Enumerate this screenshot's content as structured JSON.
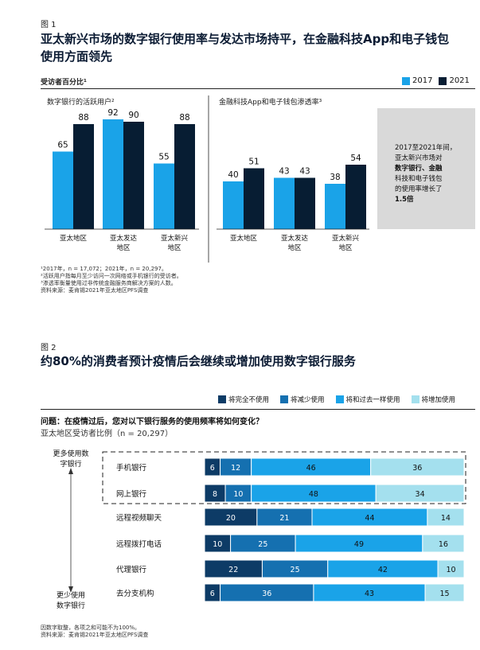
{
  "figure1": {
    "label": "图 1",
    "title_line1": "亚太新兴市场的数字银行使用率与发达市场持平，在金融科技App和电子钱包",
    "title_line2": "使用方面领先",
    "respondent_label": "受访者百分比¹",
    "legend": [
      {
        "name": "2017",
        "color": "#1aa3e8"
      },
      {
        "name": "2021",
        "color": "#071d33"
      }
    ],
    "panel_left_title": "数字银行的活跃用户²",
    "panel_right_title": "金融科技App和电子钱包渗透率³",
    "callout": {
      "line1": "2017至2021年间，",
      "line2": "亚太新兴市场对",
      "line3": "数字银行、金融",
      "line4": "科技和电子钱包",
      "line5": "的使用率增长了",
      "line6": "1.5倍"
    },
    "footnote1": "¹2017年，n = 17,072；2021年，n = 20,297。",
    "footnote2": "²活跃用户指每月至少访问一次网络或手机银行的受访者。",
    "footnote3": "³渗透率衡量使用过非传统金融服务商解决方案的人数。",
    "source": "资料来源：麦肯锡2021年亚太地区PFS调查"
  },
  "figure2": {
    "label": "图 2",
    "title": "约80%的消费者预计疫情后会继续或增加使用数字银行服务",
    "legend": [
      {
        "name": "将完全不使用",
        "color": "#0d3b66"
      },
      {
        "name": "将减少使用",
        "color": "#1570b0"
      },
      {
        "name": "将和过去一样使用",
        "color": "#1aa3e8"
      },
      {
        "name": "将增加使用",
        "color": "#a4e0ee"
      }
    ],
    "question": "问题：在疫情过后，您对以下银行服务的使用频率将如何变化？",
    "subquestion": "亚太地区受访者比例（n = 20,297）",
    "more_label_1": "更多使用数",
    "more_label_2": "字银行",
    "less_label_1": "更少使用",
    "less_label_2": "数字银行",
    "footnote1": "因数字取整，各项之和可能不为100%。",
    "source": "资料来源：麦肯锡2021年亚太地区PFS调查"
  },
  "chart_data": [
    {
      "type": "bar",
      "title": "数字银行的活跃用户²",
      "categories": [
        "亚太地区",
        "亚太发达地区",
        "亚太新兴地区"
      ],
      "series": [
        {
          "name": "2017",
          "values": [
            65,
            92,
            55
          ]
        },
        {
          "name": "2021",
          "values": [
            88,
            90,
            88
          ]
        }
      ],
      "ylim": [
        0,
        100
      ]
    },
    {
      "type": "bar",
      "title": "金融科技App和电子钱包渗透率³",
      "categories": [
        "亚太地区",
        "亚太发达地区",
        "亚太新兴地区"
      ],
      "series": [
        {
          "name": "2017",
          "values": [
            40,
            43,
            38
          ]
        },
        {
          "name": "2021",
          "values": [
            51,
            43,
            54
          ]
        }
      ],
      "ylim": [
        0,
        100
      ]
    },
    {
      "type": "bar",
      "stacked": true,
      "orientation": "horizontal",
      "title": "约80%的消费者预计疫情后会继续或增加使用数字银行服务",
      "categories": [
        "手机银行",
        "网上银行",
        "远程视频聊天",
        "远程拨打电话",
        "代理银行",
        "去分支机构"
      ],
      "series": [
        {
          "name": "将完全不使用",
          "values": [
            6,
            8,
            20,
            10,
            22,
            6
          ]
        },
        {
          "name": "将减少使用",
          "values": [
            12,
            10,
            21,
            25,
            25,
            36
          ]
        },
        {
          "name": "将和过去一样使用",
          "values": [
            46,
            48,
            44,
            49,
            42,
            43
          ]
        },
        {
          "name": "将增加使用",
          "values": [
            36,
            34,
            14,
            16,
            10,
            15
          ]
        }
      ],
      "xlim": [
        0,
        100
      ]
    }
  ]
}
